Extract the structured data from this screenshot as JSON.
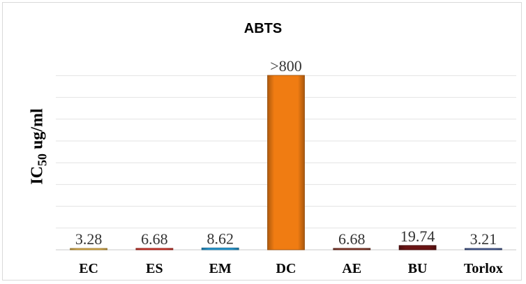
{
  "chart_data": {
    "type": "bar",
    "title": "ABTS",
    "xlabel": "",
    "ylabel": "IC",
    "ylabel_subscript": "50",
    "ylabel_suffix": " ug/ml",
    "categories": [
      "EC",
      "ES",
      "EM",
      "DC",
      "AE",
      "BU",
      "Torlox"
    ],
    "values": [
      3.28,
      6.68,
      8.62,
      800,
      6.68,
      19.74,
      3.21
    ],
    "data_labels": [
      "3.28",
      "6.68",
      "8.62",
      ">800",
      "6.68",
      "19.74",
      "3.21"
    ],
    "colors": [
      "#e6b54a",
      "#d9362b",
      "#2a9fd8",
      "#f07c12",
      "#8b3a2b",
      "#6a1414",
      "#4a5f9a"
    ],
    "ylim": [
      0,
      800
    ],
    "grid": true,
    "legend": "none"
  }
}
